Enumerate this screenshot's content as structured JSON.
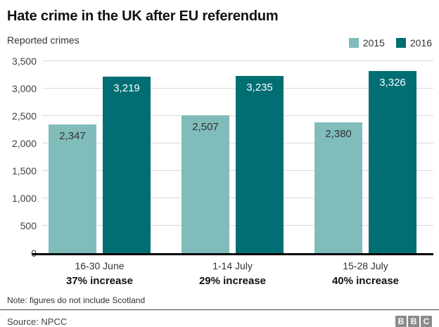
{
  "title": "Hate crime in the UK after EU referendum",
  "subtitle": "Reported crimes",
  "footer": {
    "note": "Note: figures do not include Scotland",
    "source": "Source: NPCC",
    "logo_letters": [
      "B",
      "B",
      "C"
    ]
  },
  "colors": {
    "series_2015": "#7fbcba",
    "series_2016": "#006e72",
    "gridline": "#d9d9d9",
    "baseline": "#000000",
    "logo_gray": "#8b8b8b"
  },
  "chart_data": {
    "type": "bar",
    "title": "Hate crime in the UK after EU referendum",
    "subtitle": "Reported crimes",
    "categories": [
      "16-30 June",
      "1-14 July",
      "15-28 July"
    ],
    "category_sublabels": [
      "37% increase",
      "29% increase",
      "40% increase"
    ],
    "series": [
      {
        "name": "2015",
        "color": "#7fbcba",
        "values": [
          2347,
          2507,
          2380
        ],
        "value_labels": [
          "2,347",
          "2,507",
          "2,380"
        ],
        "value_label_color": "#333333"
      },
      {
        "name": "2016",
        "color": "#006e72",
        "values": [
          3219,
          3235,
          3326
        ],
        "value_labels": [
          "3,219",
          "3,235",
          "3,326"
        ],
        "value_label_color": "#ffffff"
      }
    ],
    "xlabel": "",
    "ylabel": "Reported crimes",
    "ylim": [
      0,
      3500
    ],
    "ytick_interval": 500,
    "yticks": [
      "0",
      "500",
      "1,000",
      "1,500",
      "2,000",
      "2,500",
      "3,000",
      "3,500"
    ],
    "grid": true,
    "legend_position": "top-right"
  }
}
